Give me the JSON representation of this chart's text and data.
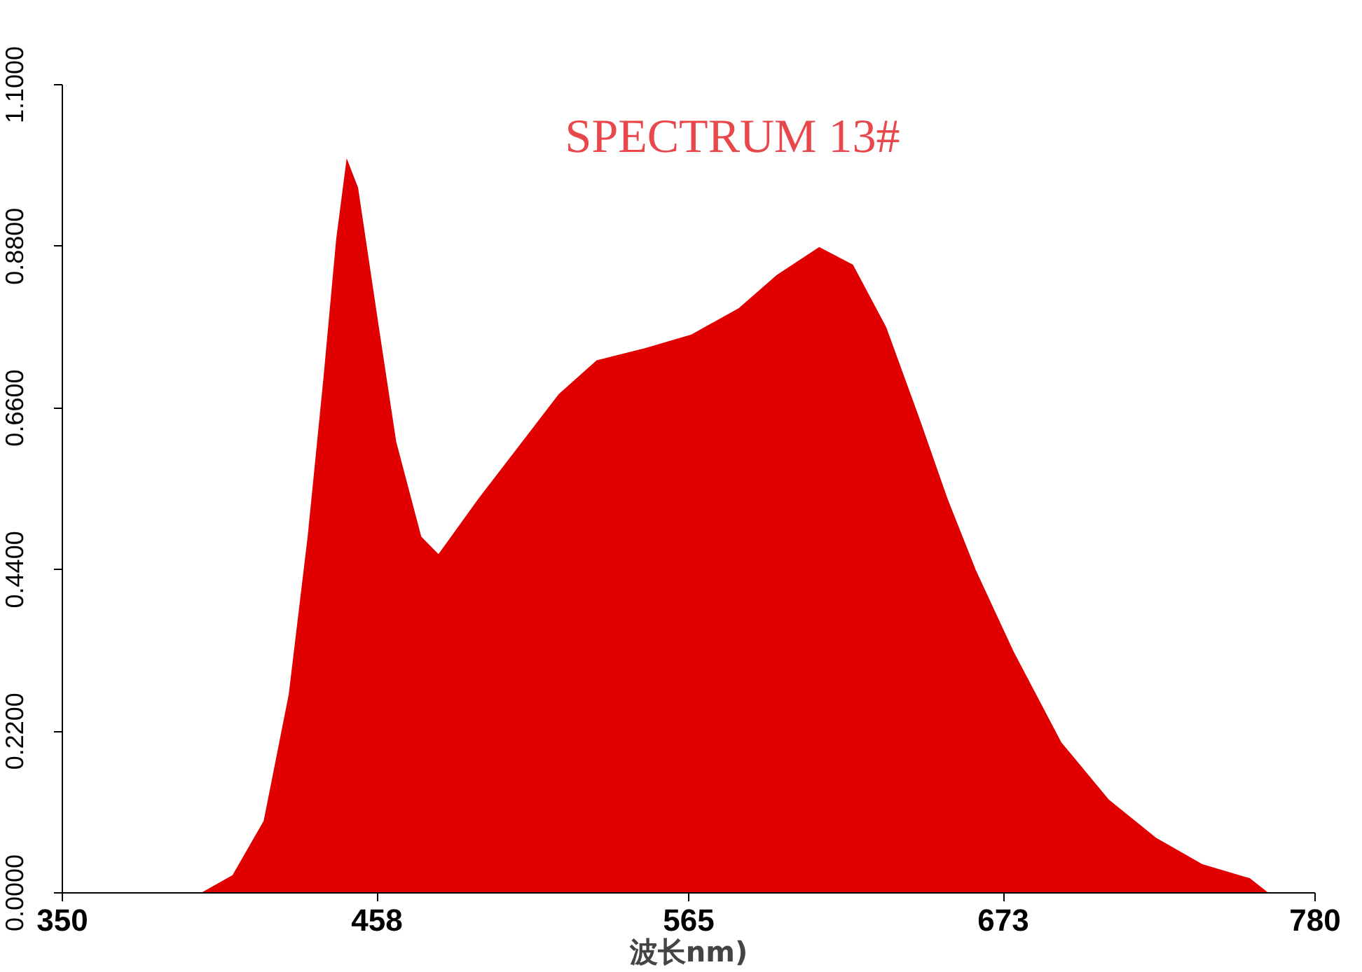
{
  "chart_data": {
    "type": "area",
    "title": "SPECTRUM 13#",
    "xlabel": "波长nm)",
    "x": [
      350,
      397.6,
      408.4,
      419.1,
      427.7,
      434.2,
      439.6,
      444,
      447.6,
      451.5,
      458,
      464.6,
      473.2,
      479.1,
      492.7,
      509,
      520.4,
      533.4,
      549.7,
      565.9,
      582.2,
      595.2,
      609.8,
      621.4,
      632.8,
      644.1,
      653.9,
      663.6,
      676.6,
      692.9,
      709.2,
      725.4,
      741.3,
      757.6,
      764,
      780
    ],
    "series": [
      {
        "values": [
          0,
          0,
          0.024,
          0.098,
          0.27,
          0.485,
          0.7,
          0.89,
          1.0,
          0.96,
          0.787,
          0.614,
          0.485,
          0.461,
          0.536,
          0.62,
          0.679,
          0.725,
          0.741,
          0.76,
          0.796,
          0.841,
          0.879,
          0.855,
          0.77,
          0.647,
          0.536,
          0.439,
          0.328,
          0.205,
          0.127,
          0.075,
          0.039,
          0.02,
          0,
          0
        ],
        "color": "#e00000"
      }
    ],
    "xlim": [
      350,
      780
    ],
    "xticks": [
      350,
      458,
      565,
      673,
      780
    ],
    "ylim": [
      0,
      1.1
    ],
    "yticks": [
      {
        "value": 0,
        "label": "0.0000"
      },
      {
        "value": 0.22,
        "label": "0.2200"
      },
      {
        "value": 0.44,
        "label": "0.4400"
      },
      {
        "value": 0.66,
        "label": "0.6600"
      },
      {
        "value": 0.88,
        "label": "0.8800"
      },
      {
        "value": 1.1,
        "label": "1.1000"
      }
    ]
  }
}
